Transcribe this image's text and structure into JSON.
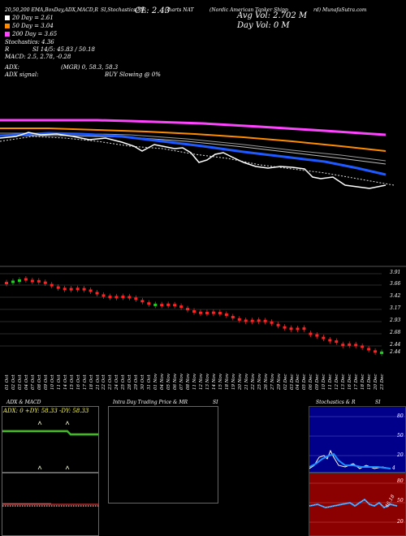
{
  "header": {
    "ema_line": "20,50,200 EMA,BoxDay,ADX,MACD,R",
    "si_line": "SI,Stochastics,MR",
    "cl_label": "CL: 2.43",
    "charts_label": "Charts NAT",
    "company_line": "(Nordic American Tanker Shipp",
    "company_tail": "rd) MunafaSutra.com",
    "avg_vol": "Avg Vol: 2.702  M",
    "day_vol": "Day Vol: 0  M"
  },
  "legend": [
    {
      "text": "20  Day = 2.61",
      "color": "#ffffff"
    },
    {
      "text": "50  Day = 3.04",
      "color": "#ff8c00"
    },
    {
      "text": "200  Day = 3.65",
      "color": "#ff44ff"
    }
  ],
  "indicators": {
    "stochastics": "Stochastics: 4.36",
    "si": "SI 14/5: 45.83 / 50.18",
    "r_label": "R",
    "c_label": "C",
    "macd": "MACD: 2.5, 2.78, -0.28",
    "adx": "ADX:",
    "adx_values": "(MGR) 0, 58.3, 58.3",
    "adx_signal": "ADX  signal:",
    "signal_value": "BUY Slowing @ 0%"
  },
  "price_axis": [
    "3.91",
    "3.66",
    "3.42",
    "3.17",
    "2.93",
    "2.68",
    "2.44",
    "2.44"
  ],
  "date_labels": [
    "01 Oct",
    "02 Oct",
    "03 Oct",
    "04 Oct",
    "07 Oct",
    "08 Oct",
    "09 Oct",
    "10 Oct",
    "11 Oct",
    "14 Oct",
    "15 Oct",
    "16 Oct",
    "17 Oct",
    "18 Oct",
    "21 Oct",
    "22 Oct",
    "23 Oct",
    "24 Oct",
    "25 Oct",
    "28 Oct",
    "29 Oct",
    "30 Oct",
    "31 Oct",
    "01 Nov",
    "04 Nov",
    "05 Nov",
    "06 Nov",
    "07 Nov",
    "08 Nov",
    "11 Nov",
    "12 Nov",
    "13 Nov",
    "14 Nov",
    "15 Nov",
    "18 Nov",
    "19 Nov",
    "20 Nov",
    "21 Nov",
    "22 Nov",
    "25 Nov",
    "26 Nov",
    "27 Nov",
    "29 Nov",
    "02 Dec",
    "03 Dec",
    "04 Dec",
    "05 Dec",
    "06 Dec",
    "09 Dec",
    "10 Dec",
    "11 Dec",
    "12 Dec",
    "13 Dec",
    "16 Dec",
    "17 Dec",
    "18 Dec",
    "19 Dec",
    "20 Dec",
    "23 Dec"
  ],
  "panels": {
    "adx_title": "ADX  & MACD",
    "adx_readout": "ADX: 0  +DY: 58.33  -DY: 58.33",
    "intraday_title": "Intra Day Trading Price  & MR",
    "intraday_si": "SI",
    "stoch_title": "Stochastics & R",
    "stoch_si": "SI",
    "stoch_ticks": [
      "80",
      "50",
      "20"
    ],
    "stoch_value": "4",
    "si_ticks": [
      "80",
      "50",
      "20"
    ],
    "si_value": "46.18"
  },
  "colors": {
    "ema20": "#ffffff",
    "ema50": "#ff8c00",
    "ema200": "#ff44ff",
    "blue_line": "#1e5aff",
    "up_candle": "#22cc22",
    "down_candle": "#ff2222"
  }
}
